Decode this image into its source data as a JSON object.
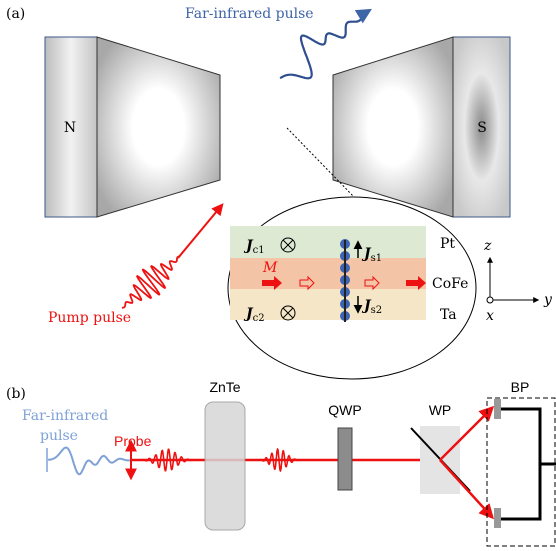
{
  "panel_a": {
    "label": "(a)",
    "far_infrared_label": "Far-infrared pulse",
    "magnet_n": "N",
    "magnet_s": "S",
    "pump_label": "Pump pulse",
    "inset": {
      "jc1": {
        "symbol": "J",
        "subscript": "c1"
      },
      "js1": {
        "symbol": "J",
        "subscript": "s1"
      },
      "jc2": {
        "symbol": "J",
        "subscript": "c2"
      },
      "js2": {
        "symbol": "J",
        "subscript": "s2"
      },
      "magnetization": "M",
      "layers": [
        "Pt",
        "CoFe",
        "Ta"
      ],
      "axes": {
        "z": "z",
        "y": "y",
        "x": "x"
      }
    }
  },
  "panel_b": {
    "label": "(b)",
    "far_infrared_label": [
      "Far-infrared",
      "pulse"
    ],
    "probe_label": "Probe",
    "components": [
      "ZnTe",
      "QWP",
      "WP",
      "BP"
    ]
  }
}
